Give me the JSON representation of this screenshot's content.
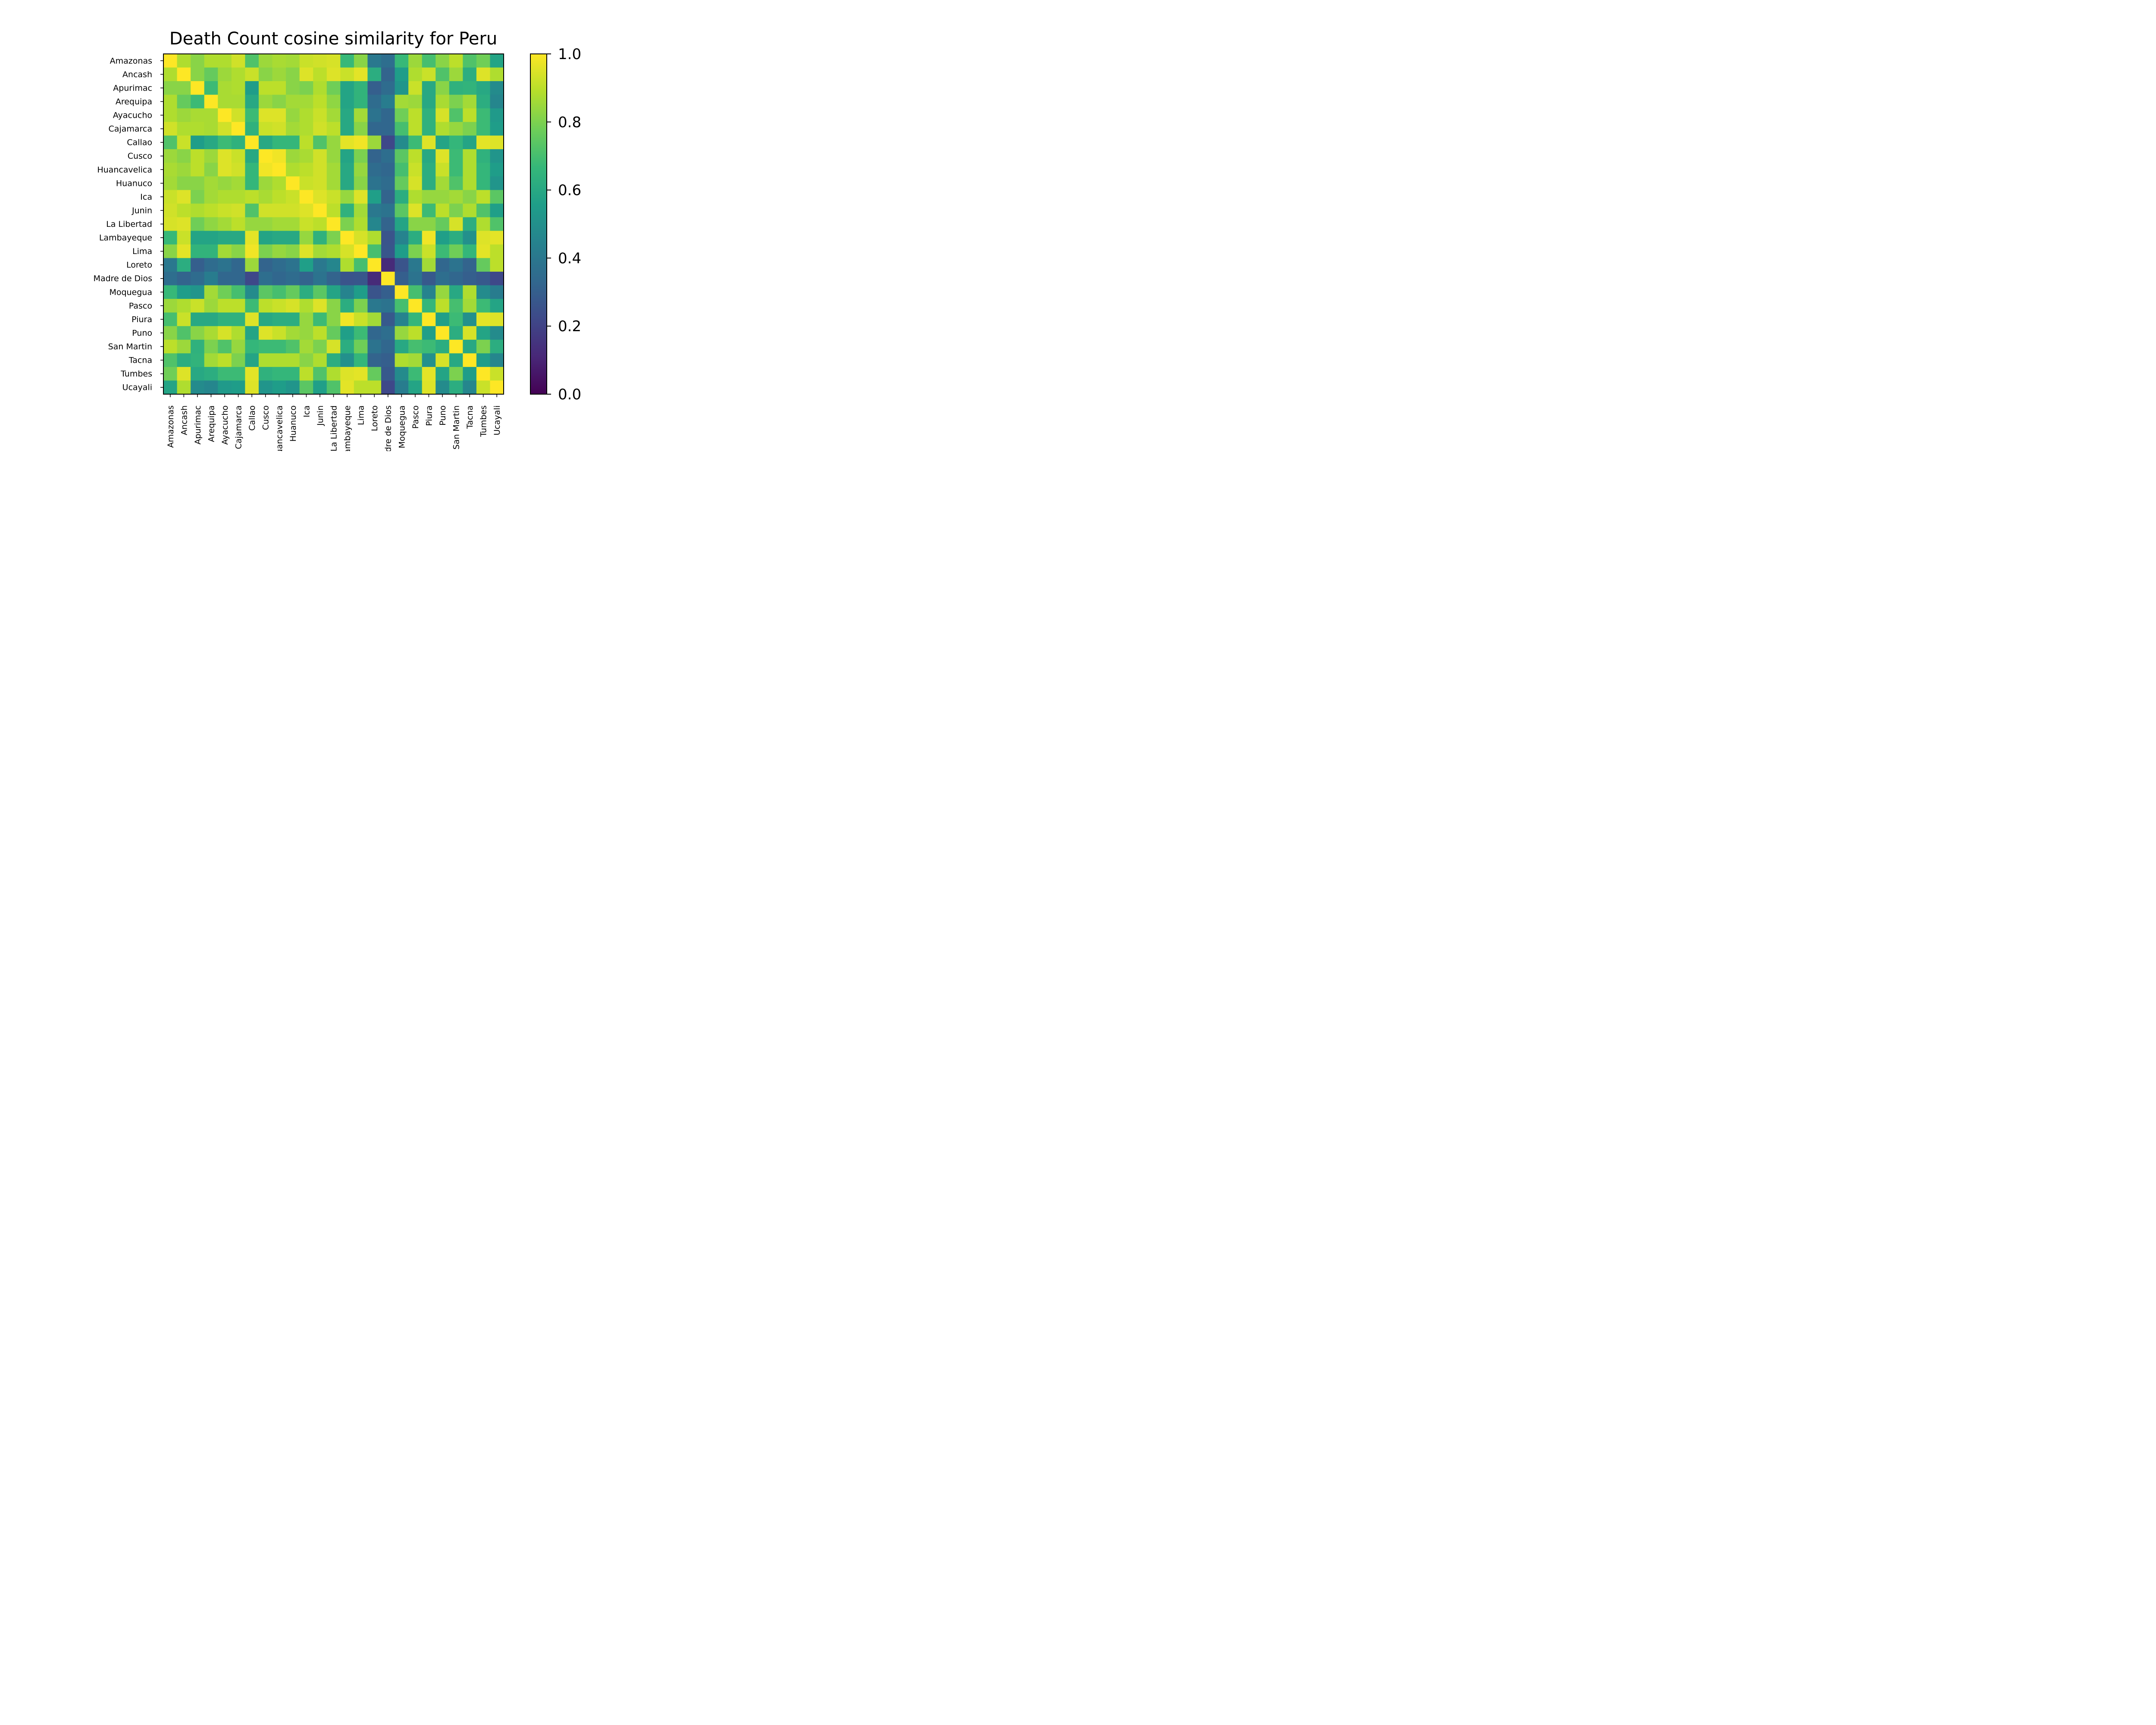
{
  "chart_data": {
    "type": "heatmap",
    "title": "Death Count cosine similarity for Peru",
    "xlabel": "",
    "ylabel": "",
    "colormap": "viridis",
    "vmin": 0.0,
    "vmax": 1.0,
    "colorbar_ticks": [
      "0.0",
      "0.2",
      "0.4",
      "0.6",
      "0.8",
      "1.0"
    ],
    "labels": [
      "Amazonas",
      "Ancash",
      "Apurimac",
      "Arequipa",
      "Ayacucho",
      "Cajamarca",
      "Callao",
      "Cusco",
      "Huancavelica",
      "Huanuco",
      "Ica",
      "Junin",
      "La Libertad",
      "Lambayeque",
      "Lima",
      "Loreto",
      "Madre de Dios",
      "Moquegua",
      "Pasco",
      "Piura",
      "Puno",
      "San Martin",
      "Tacna",
      "Tumbes",
      "Ucayali"
    ],
    "values": [
      [
        1.0,
        0.88,
        0.82,
        0.88,
        0.88,
        0.93,
        0.72,
        0.85,
        0.87,
        0.86,
        0.92,
        0.93,
        0.94,
        0.67,
        0.82,
        0.4,
        0.36,
        0.67,
        0.85,
        0.7,
        0.82,
        0.9,
        0.72,
        0.78,
        0.58
      ],
      [
        0.88,
        1.0,
        0.82,
        0.76,
        0.85,
        0.88,
        0.92,
        0.82,
        0.85,
        0.82,
        0.95,
        0.9,
        0.95,
        0.92,
        0.96,
        0.62,
        0.32,
        0.55,
        0.88,
        0.92,
        0.72,
        0.85,
        0.62,
        0.95,
        0.88
      ],
      [
        0.82,
        0.82,
        1.0,
        0.68,
        0.87,
        0.88,
        0.55,
        0.9,
        0.9,
        0.82,
        0.8,
        0.88,
        0.78,
        0.58,
        0.65,
        0.3,
        0.35,
        0.52,
        0.92,
        0.6,
        0.82,
        0.64,
        0.65,
        0.6,
        0.48
      ],
      [
        0.88,
        0.76,
        0.68,
        1.0,
        0.87,
        0.87,
        0.6,
        0.85,
        0.82,
        0.86,
        0.86,
        0.9,
        0.83,
        0.58,
        0.65,
        0.35,
        0.42,
        0.86,
        0.85,
        0.6,
        0.87,
        0.8,
        0.86,
        0.62,
        0.46
      ],
      [
        0.88,
        0.85,
        0.87,
        0.87,
        1.0,
        0.93,
        0.68,
        0.95,
        0.95,
        0.84,
        0.88,
        0.92,
        0.86,
        0.6,
        0.86,
        0.38,
        0.33,
        0.78,
        0.9,
        0.64,
        0.94,
        0.72,
        0.9,
        0.68,
        0.54
      ],
      [
        0.93,
        0.88,
        0.88,
        0.87,
        0.93,
        1.0,
        0.64,
        0.92,
        0.93,
        0.86,
        0.88,
        0.93,
        0.9,
        0.6,
        0.82,
        0.33,
        0.33,
        0.7,
        0.9,
        0.64,
        0.88,
        0.84,
        0.8,
        0.68,
        0.55
      ],
      [
        0.72,
        0.92,
        0.55,
        0.6,
        0.68,
        0.64,
        1.0,
        0.6,
        0.66,
        0.66,
        0.9,
        0.72,
        0.84,
        0.96,
        0.98,
        0.85,
        0.22,
        0.48,
        0.68,
        0.95,
        0.58,
        0.66,
        0.58,
        0.96,
        0.95
      ],
      [
        0.85,
        0.82,
        0.9,
        0.85,
        0.95,
        0.92,
        0.6,
        1.0,
        0.98,
        0.85,
        0.87,
        0.93,
        0.84,
        0.58,
        0.8,
        0.32,
        0.36,
        0.74,
        0.9,
        0.6,
        0.95,
        0.68,
        0.88,
        0.64,
        0.52
      ],
      [
        0.87,
        0.85,
        0.9,
        0.82,
        0.95,
        0.93,
        0.66,
        0.98,
        1.0,
        0.88,
        0.9,
        0.93,
        0.86,
        0.6,
        0.84,
        0.35,
        0.33,
        0.7,
        0.92,
        0.62,
        0.92,
        0.68,
        0.88,
        0.66,
        0.55
      ],
      [
        0.86,
        0.82,
        0.82,
        0.86,
        0.84,
        0.86,
        0.66,
        0.85,
        0.88,
        1.0,
        0.92,
        0.93,
        0.86,
        0.6,
        0.82,
        0.38,
        0.35,
        0.76,
        0.94,
        0.62,
        0.86,
        0.72,
        0.88,
        0.66,
        0.52
      ],
      [
        0.92,
        0.95,
        0.8,
        0.86,
        0.88,
        0.88,
        0.9,
        0.87,
        0.9,
        0.92,
        1.0,
        0.95,
        0.92,
        0.84,
        0.95,
        0.56,
        0.32,
        0.62,
        0.88,
        0.84,
        0.84,
        0.86,
        0.82,
        0.9,
        0.74
      ],
      [
        0.93,
        0.9,
        0.88,
        0.9,
        0.92,
        0.93,
        0.72,
        0.93,
        0.93,
        0.93,
        0.95,
        1.0,
        0.9,
        0.64,
        0.86,
        0.4,
        0.38,
        0.74,
        0.95,
        0.68,
        0.9,
        0.8,
        0.88,
        0.72,
        0.56
      ],
      [
        0.94,
        0.95,
        0.78,
        0.83,
        0.86,
        0.9,
        0.84,
        0.84,
        0.86,
        0.86,
        0.92,
        0.9,
        1.0,
        0.8,
        0.88,
        0.46,
        0.32,
        0.58,
        0.82,
        0.82,
        0.76,
        0.94,
        0.62,
        0.88,
        0.72
      ],
      [
        0.67,
        0.92,
        0.58,
        0.58,
        0.6,
        0.6,
        0.96,
        0.58,
        0.6,
        0.6,
        0.84,
        0.64,
        0.8,
        1.0,
        0.94,
        0.88,
        0.26,
        0.45,
        0.62,
        0.98,
        0.56,
        0.62,
        0.5,
        0.95,
        0.96
      ],
      [
        0.82,
        0.96,
        0.65,
        0.65,
        0.86,
        0.82,
        0.98,
        0.8,
        0.84,
        0.82,
        0.95,
        0.86,
        0.88,
        0.94,
        1.0,
        0.7,
        0.27,
        0.55,
        0.8,
        0.92,
        0.68,
        0.78,
        0.66,
        0.96,
        0.9
      ],
      [
        0.4,
        0.62,
        0.3,
        0.35,
        0.38,
        0.33,
        0.85,
        0.32,
        0.35,
        0.38,
        0.56,
        0.4,
        0.46,
        0.88,
        0.7,
        1.0,
        0.12,
        0.26,
        0.4,
        0.86,
        0.33,
        0.38,
        0.32,
        0.76,
        0.9
      ],
      [
        0.36,
        0.32,
        0.35,
        0.42,
        0.33,
        0.33,
        0.22,
        0.36,
        0.33,
        0.35,
        0.32,
        0.38,
        0.32,
        0.26,
        0.27,
        0.12,
        1.0,
        0.3,
        0.38,
        0.28,
        0.36,
        0.33,
        0.3,
        0.28,
        0.22
      ],
      [
        0.67,
        0.55,
        0.52,
        0.86,
        0.78,
        0.7,
        0.48,
        0.74,
        0.7,
        0.76,
        0.62,
        0.74,
        0.58,
        0.45,
        0.55,
        0.26,
        0.3,
        1.0,
        0.7,
        0.45,
        0.84,
        0.6,
        0.88,
        0.48,
        0.42
      ],
      [
        0.85,
        0.88,
        0.92,
        0.85,
        0.9,
        0.9,
        0.68,
        0.9,
        0.92,
        0.94,
        0.88,
        0.95,
        0.82,
        0.62,
        0.8,
        0.4,
        0.38,
        0.7,
        1.0,
        0.66,
        0.9,
        0.7,
        0.86,
        0.68,
        0.58
      ],
      [
        0.7,
        0.92,
        0.6,
        0.6,
        0.64,
        0.64,
        0.95,
        0.6,
        0.62,
        0.62,
        0.84,
        0.68,
        0.82,
        0.98,
        0.92,
        0.86,
        0.28,
        0.45,
        0.66,
        1.0,
        0.56,
        0.68,
        0.5,
        0.96,
        0.95
      ],
      [
        0.82,
        0.72,
        0.82,
        0.87,
        0.94,
        0.88,
        0.58,
        0.95,
        0.92,
        0.86,
        0.84,
        0.9,
        0.76,
        0.56,
        0.68,
        0.33,
        0.36,
        0.84,
        0.9,
        0.56,
        1.0,
        0.62,
        0.94,
        0.58,
        0.48
      ],
      [
        0.9,
        0.85,
        0.64,
        0.8,
        0.72,
        0.84,
        0.66,
        0.68,
        0.68,
        0.72,
        0.86,
        0.8,
        0.94,
        0.62,
        0.78,
        0.38,
        0.33,
        0.6,
        0.7,
        0.68,
        0.62,
        1.0,
        0.6,
        0.8,
        0.62
      ],
      [
        0.72,
        0.62,
        0.65,
        0.86,
        0.9,
        0.8,
        0.58,
        0.88,
        0.88,
        0.88,
        0.82,
        0.88,
        0.62,
        0.5,
        0.66,
        0.32,
        0.3,
        0.88,
        0.86,
        0.5,
        0.94,
        0.6,
        1.0,
        0.55,
        0.46
      ],
      [
        0.78,
        0.95,
        0.6,
        0.62,
        0.68,
        0.68,
        0.96,
        0.64,
        0.66,
        0.66,
        0.9,
        0.72,
        0.88,
        0.95,
        0.96,
        0.76,
        0.28,
        0.48,
        0.68,
        0.96,
        0.58,
        0.8,
        0.55,
        1.0,
        0.92
      ],
      [
        0.58,
        0.88,
        0.48,
        0.46,
        0.54,
        0.55,
        0.95,
        0.52,
        0.55,
        0.52,
        0.74,
        0.56,
        0.72,
        0.96,
        0.9,
        0.9,
        0.22,
        0.42,
        0.58,
        0.95,
        0.48,
        0.62,
        0.46,
        0.92,
        1.0
      ]
    ]
  }
}
